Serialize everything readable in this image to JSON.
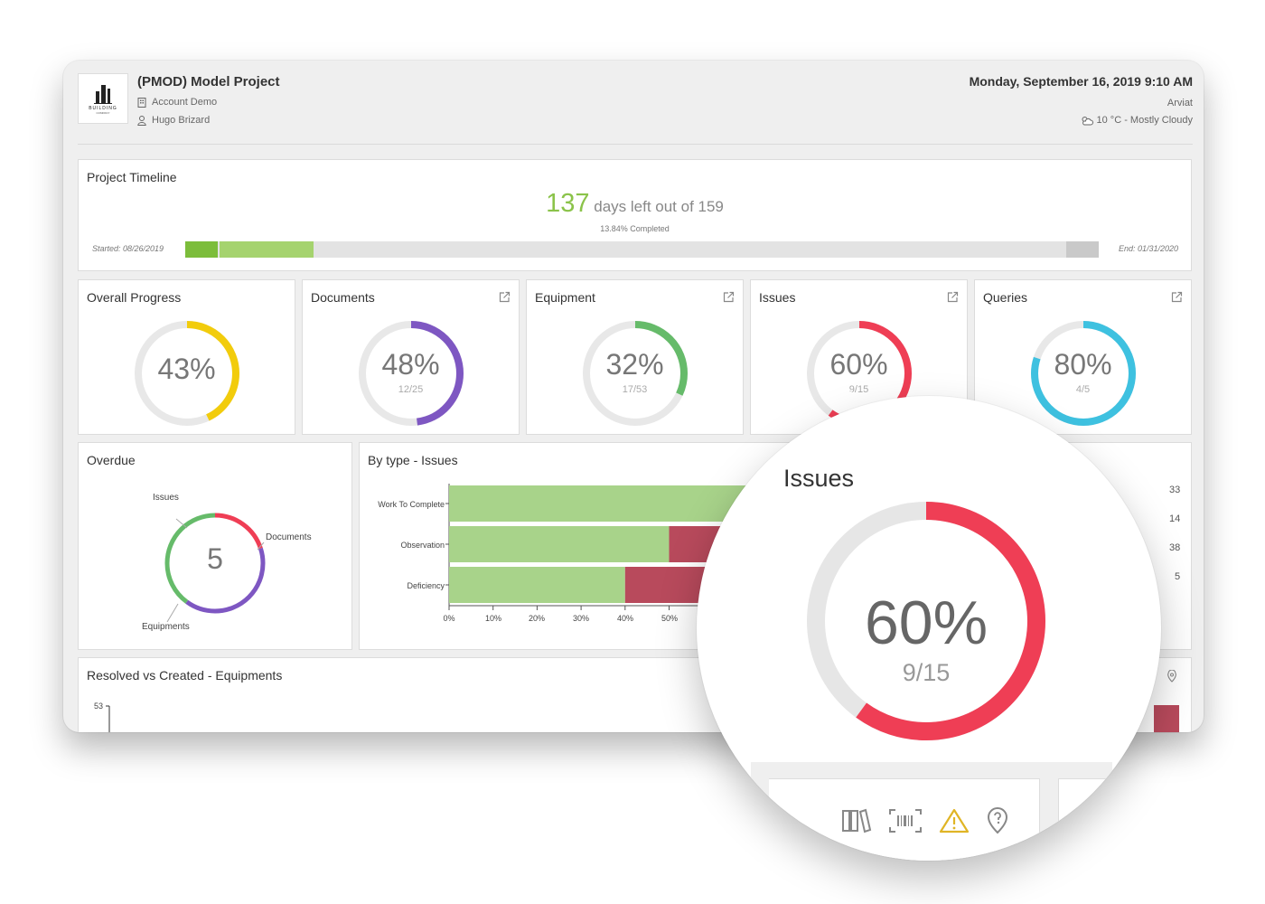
{
  "header": {
    "project_title": "(PMOD) Model Project",
    "account": "Account Demo",
    "user": "Hugo Brizard",
    "datetime": "Monday, September 16, 2019 9:10 AM",
    "city": "Arviat",
    "weather": "10 °C - Mostly Cloudy",
    "logo_text": "BUILDING",
    "logo_subtext": "COMPANY"
  },
  "timeline": {
    "title": "Project Timeline",
    "days_left": "137",
    "days_text": "days left out of 159",
    "percent_completed": "13.84% Completed",
    "progress_fraction": 0.1384,
    "start": "Started: 08/26/2019",
    "end": "End: 01/31/2020"
  },
  "gauges": [
    {
      "title": "Overall Progress",
      "value": "43%",
      "sub": "",
      "fraction": 0.43,
      "color": "#f2cc0c",
      "editable": false
    },
    {
      "title": "Documents",
      "value": "48%",
      "sub": "12/25",
      "fraction": 0.48,
      "color": "#7e57c2",
      "editable": true
    },
    {
      "title": "Equipment",
      "value": "32%",
      "sub": "17/53",
      "fraction": 0.32,
      "color": "#66bb6a",
      "editable": true
    },
    {
      "title": "Issues",
      "value": "60%",
      "sub": "9/15",
      "fraction": 0.6,
      "color": "#ef3e55",
      "editable": true
    },
    {
      "title": "Queries",
      "value": "80%",
      "sub": "4/5",
      "fraction": 0.8,
      "color": "#3ec1e0",
      "editable": true
    }
  ],
  "overdue": {
    "title": "Overdue",
    "total": "5",
    "segments": [
      {
        "label": "Issues",
        "value": 1,
        "color": "#ef3e55"
      },
      {
        "label": "Documents",
        "value": 2,
        "color": "#7e57c2"
      },
      {
        "label": "Equipments",
        "value": 2,
        "color": "#66bb6a"
      }
    ]
  },
  "by_type": {
    "title": "By type - Issues",
    "right_values": [
      "33",
      "14",
      "38",
      "5"
    ]
  },
  "chart_data": {
    "type": "bar",
    "orientation": "horizontal",
    "stacked": true,
    "title": "By type - Issues",
    "categories": [
      "Work To Complete",
      "Observation",
      "Deficiency"
    ],
    "series": [
      {
        "values": [
          100,
          50,
          40
        ],
        "color": "#a8d38a"
      },
      {
        "values": [
          0,
          50,
          60
        ],
        "color": "#b84a5c"
      }
    ],
    "x_ticks": [
      "0%",
      "10%",
      "20%",
      "30%",
      "40%",
      "50%"
    ],
    "xlim": [
      0,
      100
    ]
  },
  "resolved": {
    "title": "Resolved vs Created - Equipments",
    "y_top": "53"
  },
  "magnifier": {
    "title": "Issues",
    "value": "60%",
    "sub": "9/15",
    "fraction": 0.6,
    "color": "#ef3e55",
    "track_color": "#e6e6e6",
    "icons": [
      "library-icon",
      "barcode-icon",
      "warning-icon",
      "location-question-icon"
    ]
  },
  "colors": {
    "accent_green": "#8bc34a",
    "timeline_track": "#e3e3e3",
    "gauge_track": "#e8e8e8"
  }
}
